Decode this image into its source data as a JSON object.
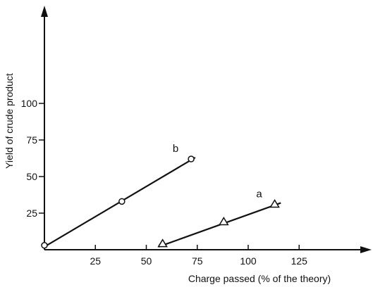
{
  "chart_data": {
    "type": "line",
    "xlabel": "Charge passed  (% of the theory)",
    "ylabel": "Yield of crude product",
    "xlim": [
      0,
      150
    ],
    "ylim": [
      0,
      110
    ],
    "xticks": [
      25,
      50,
      75,
      100,
      125
    ],
    "xtick_labels": [
      "25",
      "50",
      "75",
      "100",
      "125"
    ],
    "yticks": [
      25,
      50,
      75,
      100
    ],
    "ytick_labels": [
      "25",
      "50",
      "75",
      "100"
    ],
    "grid": false,
    "series": [
      {
        "name": "b",
        "marker": "circle",
        "points": [
          [
            0,
            3
          ],
          [
            38,
            33
          ],
          [
            72,
            62
          ]
        ],
        "fit_line": [
          [
            0,
            2
          ],
          [
            74,
            63
          ]
        ]
      },
      {
        "name": "a",
        "marker": "triangle",
        "points": [
          [
            58,
            4
          ],
          [
            88,
            19
          ],
          [
            113,
            31
          ]
        ],
        "fit_line": [
          [
            56,
            2
          ],
          [
            116,
            32
          ]
        ]
      }
    ]
  }
}
